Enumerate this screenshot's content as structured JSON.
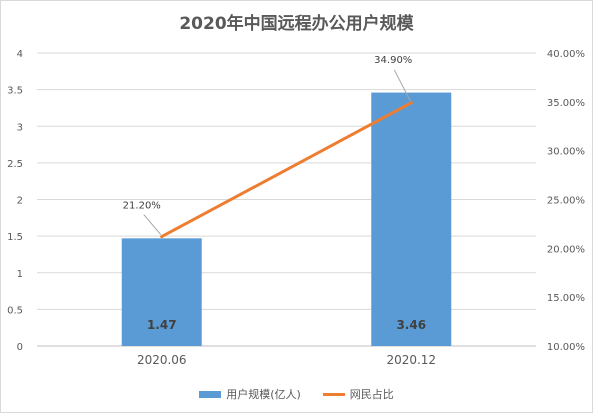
{
  "chart_data": {
    "type": "bar",
    "title": "2020年中国远程办公用户规模",
    "categories": [
      "2020.06",
      "2020.12"
    ],
    "series": [
      {
        "name": "用户规模(亿人)",
        "type": "bar",
        "axis": "left",
        "values": [
          1.47,
          3.46
        ],
        "value_labels": [
          "1.47",
          "3.46"
        ],
        "color": "#5b9bd5"
      },
      {
        "name": "网民占比",
        "type": "line",
        "axis": "right",
        "values": [
          21.2,
          34.9
        ],
        "value_labels": [
          "21.20%",
          "34.90%"
        ],
        "color": "#ed7d31"
      }
    ],
    "ylim": [
      0,
      4
    ],
    "y_ticks": [
      "0",
      "0.5",
      "1",
      "1.5",
      "2",
      "2.5",
      "3",
      "3.5",
      "4"
    ],
    "y2lim": [
      10,
      40
    ],
    "y2_ticks": [
      "10.00%",
      "15.00%",
      "20.00%",
      "25.00%",
      "30.00%",
      "35.00%",
      "40.00%"
    ],
    "grid": true,
    "legend_position": "bottom"
  }
}
